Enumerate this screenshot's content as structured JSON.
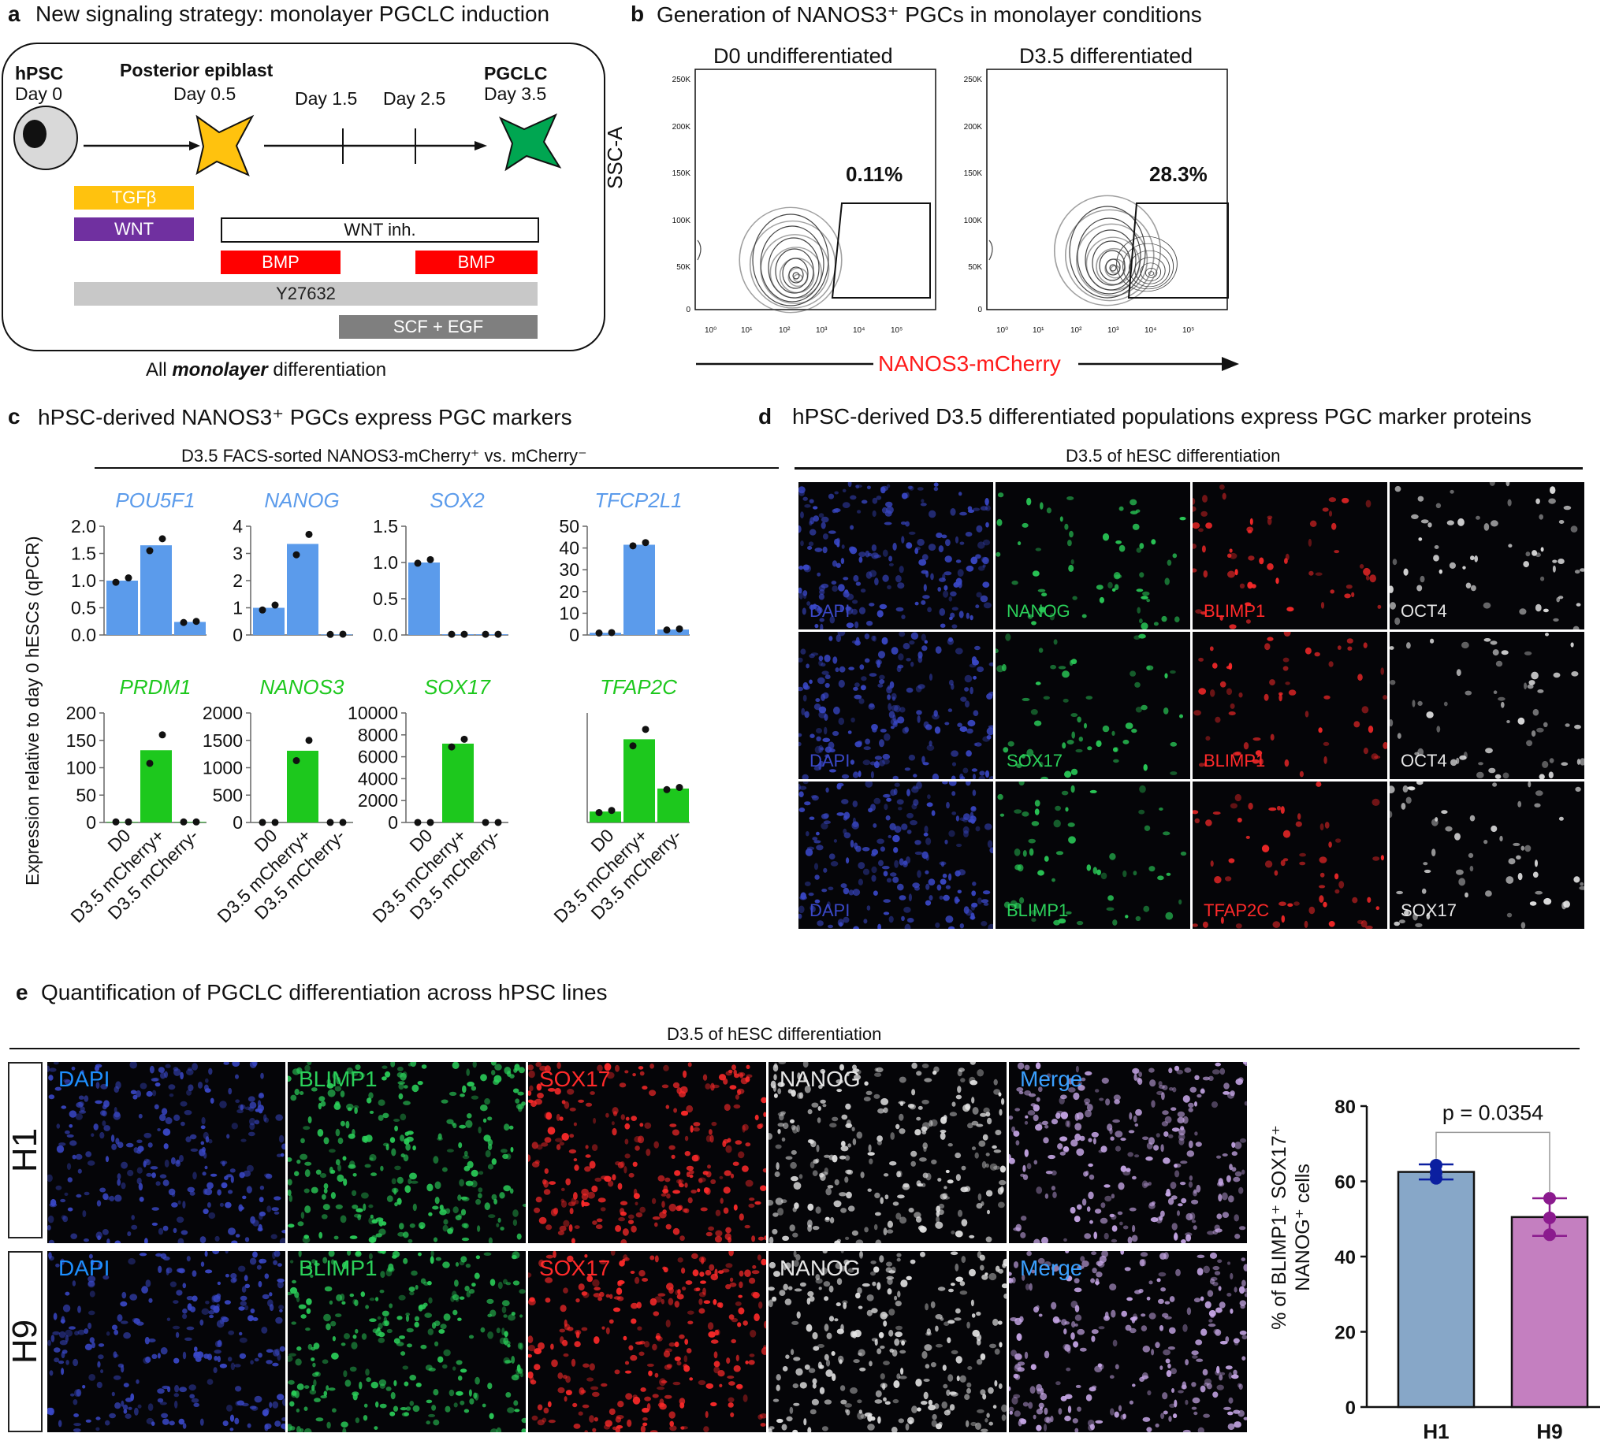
{
  "panel_a": {
    "letter": "a",
    "title": "New signaling strategy: monolayer PGCLC induction",
    "stages": [
      {
        "name": "hPSC",
        "day": "Day 0"
      },
      {
        "name": "Posterior epiblast",
        "day": "Day 0.5"
      },
      {
        "name": "",
        "day": "Day 1.5"
      },
      {
        "name": "",
        "day": "Day 2.5"
      },
      {
        "name": "PGCLC",
        "day": "Day 3.5"
      }
    ],
    "bars": {
      "tgfb": "TGFβ",
      "wnt": "WNT",
      "wnt_inh": "WNT inh.",
      "bmp1": "BMP",
      "bmp2": "BMP",
      "y27632": "Y27632",
      "scf_egf": "SCF + EGF"
    },
    "footer_pre": "All ",
    "footer_em": "monolayer",
    "footer_post": " differentiation",
    "colors": {
      "tgfb": "#FFC20E",
      "wnt": "#7030A0",
      "bmp": "#FF0000",
      "y27632": "#C8C8C8",
      "scf": "#7F7F7F",
      "epiblast_cell": "#FFC20E",
      "pgclc_cell": "#00A651"
    }
  },
  "panel_b": {
    "letter": "b",
    "title": "Generation of NANOS3⁺ PGCs in monolayer conditions",
    "plots": [
      {
        "title": "D0 undifferentiated",
        "gate_pct": "0.11%"
      },
      {
        "title": "D3.5 differentiated",
        "gate_pct": "28.3%"
      }
    ],
    "ylabel": "SSC-A",
    "xlabel": "NANOS3-mCherry",
    "yticks": [
      "250K",
      "200K",
      "150K",
      "100K",
      "50K",
      "0"
    ],
    "xticks": [
      "10⁰",
      "10¹",
      "10²",
      "10³",
      "10⁴",
      "10⁵"
    ]
  },
  "panel_c": {
    "letter": "c",
    "title": "hPSC-derived NANOS3⁺ PGCs express PGC markers",
    "subtitle": "D3.5 FACS-sorted NANOS3-mCherry⁺ vs. mCherry⁻",
    "ylabel": "Expression relative to day 0 hESCs (qPCR)",
    "categories": [
      "D0",
      "D3.5 mCherry+",
      "D3.5 mCherry-"
    ]
  },
  "panel_d": {
    "letter": "d",
    "title": "hPSC-derived D3.5 differentiated populations express PGC marker proteins",
    "subtitle": "D3.5 of hESC differentiation",
    "rows": [
      [
        "DAPI",
        "NANOG",
        "BLIMP1",
        "OCT4"
      ],
      [
        "DAPI",
        "SOX17",
        "BLIMP1",
        "OCT4"
      ],
      [
        "DAPI",
        "BLIMP1",
        "TFAP2C",
        "SOX17"
      ]
    ]
  },
  "panel_e": {
    "letter": "e",
    "title": "Quantification of PGCLC differentiation across hPSC lines",
    "subtitle": "D3.5 of hESC differentiation",
    "row_labels": [
      "H1",
      "H9"
    ],
    "channels": [
      "DAPI",
      "BLIMP1",
      "SOX17",
      "NANOG",
      "Merge"
    ],
    "ylabel_line1": "% of BLIMP1⁺ SOX17⁺",
    "ylabel_line2": "NANOG⁺ cells",
    "pvalue": "p = 0.0354"
  },
  "chart_data": [
    {
      "type": "bar",
      "title": "POU5F1",
      "categories": [
        "D0",
        "D3.5 mCherry+",
        "D3.5 mCherry-"
      ],
      "values": [
        1.0,
        1.65,
        0.24
      ],
      "points": [
        [
          0.97,
          1.05
        ],
        [
          1.55,
          1.77
        ],
        [
          0.23,
          0.25
        ]
      ],
      "ylim": [
        0,
        2.0
      ],
      "yticks": [
        "0.0",
        "0.5",
        "1.0",
        "1.5",
        "2.0"
      ],
      "color": "#5B9BEB"
    },
    {
      "type": "bar",
      "title": "NANOG",
      "categories": [
        "D0",
        "D3.5 mCherry+",
        "D3.5 mCherry-"
      ],
      "values": [
        1.0,
        3.35,
        0.02
      ],
      "points": [
        [
          0.92,
          1.1
        ],
        [
          2.95,
          3.7
        ],
        [
          0.02,
          0.03
        ]
      ],
      "ylim": [
        0,
        4
      ],
      "yticks": [
        "0",
        "1",
        "2",
        "3",
        "4"
      ],
      "color": "#5B9BEB"
    },
    {
      "type": "bar",
      "title": "SOX2",
      "categories": [
        "D0",
        "D3.5 mCherry+",
        "D3.5 mCherry-"
      ],
      "values": [
        1.0,
        0.01,
        0.01
      ],
      "points": [
        [
          0.99,
          1.04
        ],
        [
          0.01,
          0.01
        ],
        [
          0.01,
          0.01
        ]
      ],
      "ylim": [
        0,
        1.5
      ],
      "yticks": [
        "0.0",
        "0.5",
        "1.0",
        "1.5"
      ],
      "color": "#5B9BEB"
    },
    {
      "type": "bar",
      "title": "TFCP2L1",
      "categories": [
        "D0",
        "D3.5 mCherry+",
        "D3.5 mCherry-"
      ],
      "values": [
        1.0,
        41.5,
        2.5
      ],
      "points": [
        [
          0.9,
          1.1
        ],
        [
          41,
          42.5
        ],
        [
          2.3,
          2.8
        ]
      ],
      "ylim": [
        0,
        50
      ],
      "yticks": [
        "0",
        "10",
        "20",
        "30",
        "40",
        "50"
      ],
      "color": "#5B9BEB"
    },
    {
      "type": "bar",
      "title": "PRDM1",
      "categories": [
        "D0",
        "D3.5 mCherry+",
        "D3.5 mCherry-"
      ],
      "values": [
        1,
        132,
        1
      ],
      "points": [
        [
          1,
          1
        ],
        [
          108,
          160
        ],
        [
          1,
          1
        ]
      ],
      "ylim": [
        0,
        200
      ],
      "yticks": [
        "0",
        "50",
        "100",
        "150",
        "200"
      ],
      "color": "#1DC81D"
    },
    {
      "type": "bar",
      "title": "NANOS3",
      "categories": [
        "D0",
        "D3.5 mCherry+",
        "D3.5 mCherry-"
      ],
      "values": [
        1,
        1310,
        1
      ],
      "points": [
        [
          1,
          1
        ],
        [
          1130,
          1500
        ],
        [
          1,
          1
        ]
      ],
      "ylim": [
        0,
        2000
      ],
      "yticks": [
        "0",
        "500",
        "1000",
        "1500",
        "2000"
      ],
      "color": "#1DC81D"
    },
    {
      "type": "bar",
      "title": "SOX17",
      "categories": [
        "D0",
        "D3.5 mCherry+",
        "D3.5 mCherry-"
      ],
      "values": [
        1,
        7200,
        1
      ],
      "points": [
        [
          1,
          1
        ],
        [
          6900,
          7600
        ],
        [
          1,
          1
        ]
      ],
      "ylim": [
        0,
        10000
      ],
      "yticks": [
        "0",
        "2000",
        "4000",
        "6000",
        "8000",
        "10000"
      ],
      "color": "#1DC81D"
    },
    {
      "type": "bar",
      "title": "TFAP2C",
      "categories": [
        "D0",
        "D3.5 mCherry+",
        "D3.5 mCherry-"
      ],
      "values": [
        1,
        7.6,
        3.1
      ],
      "points": [
        [
          0.9,
          1.1
        ],
        [
          7.0,
          8.5
        ],
        [
          3.0,
          3.2
        ]
      ],
      "ylim": [
        0,
        10
      ],
      "yticks": [],
      "color": "#1DC81D"
    },
    {
      "type": "bar",
      "title": "",
      "categories": [
        "H1",
        "H9"
      ],
      "values": [
        62.5,
        50.5
      ],
      "points": [
        [
          60.8,
          62.3,
          64.3
        ],
        [
          45.8,
          50.3,
          55.5
        ]
      ],
      "errors": [
        2.0,
        5.0
      ],
      "ylim": [
        0,
        80
      ],
      "yticks": [
        "0",
        "20",
        "40",
        "60",
        "80"
      ],
      "colors": [
        "#87A7C8",
        "#C47FC0"
      ],
      "point_colors": [
        "#0B1FA0",
        "#8B1A8E"
      ],
      "ylabel": "% of BLIMP1⁺ SOX17⁺ NANOG⁺ cells",
      "annotation": "p = 0.0354"
    }
  ]
}
